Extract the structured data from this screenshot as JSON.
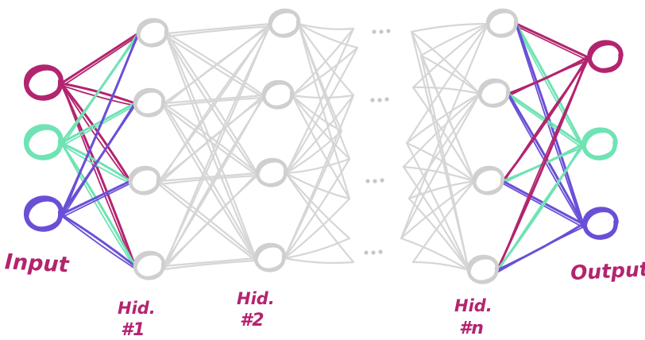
{
  "colors": {
    "input_1": "#b3246f",
    "input_2": "#6fe3b4",
    "input_3": "#6a4fd6",
    "hidden": "#cfcfcf",
    "label_input_output": "#b3246f",
    "label_hidden": "#b3246f"
  },
  "labels": {
    "input": "Input",
    "output": "Output",
    "hidden_1": "Hid.",
    "hidden_1_num": "#1",
    "hidden_2": "Hid.",
    "hidden_2_num": "#2",
    "hidden_n": "Hid.",
    "hidden_n_num": "#n"
  },
  "layers": {
    "input_nodes": 3,
    "hidden_1_nodes": 4,
    "hidden_2_nodes": 4,
    "hidden_n_nodes": 4,
    "output_nodes": 3
  }
}
